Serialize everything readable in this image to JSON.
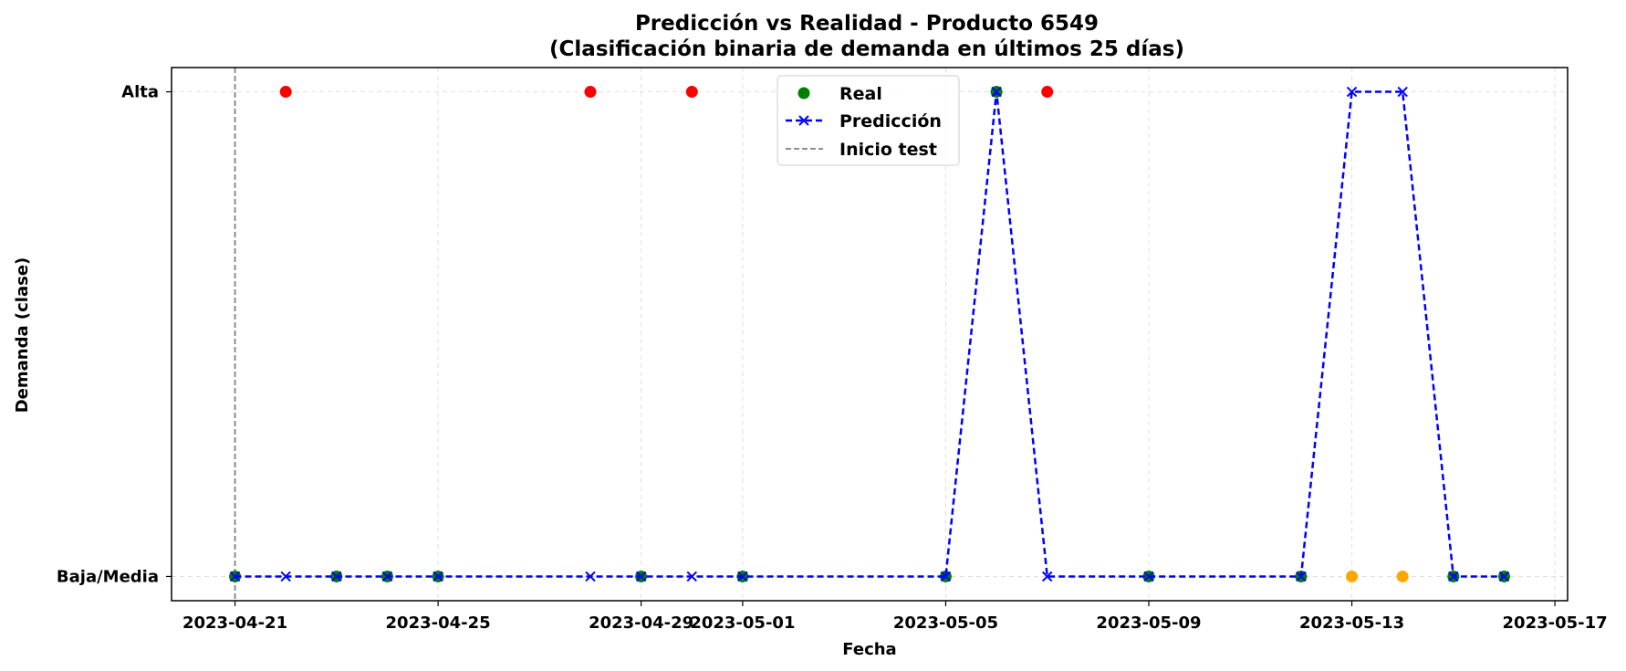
{
  "chart_data": {
    "type": "scatter",
    "title": "Predicción vs Realidad - Producto 6549",
    "subtitle": "(Clasificación binaria de demanda en últimos 25 días)",
    "xlabel": "Fecha",
    "ylabel": "Demanda (clase)",
    "xlim": [
      "2023-04-19.75",
      "2023-05-17.25"
    ],
    "ylim": [
      -0.05,
      1.05
    ],
    "x_ticks": [
      "2023-04-21",
      "2023-04-25",
      "2023-04-29",
      "2023-05-01",
      "2023-05-05",
      "2023-05-09",
      "2023-05-13",
      "2023-05-17"
    ],
    "y_ticks": [
      {
        "value": 0,
        "label": "Baja/Media"
      },
      {
        "value": 1,
        "label": "Alta"
      }
    ],
    "grid": true,
    "legend_position": "top-center",
    "colors": {
      "real_correct": "#008000",
      "real_false_negative": "#ff0000",
      "real_false_positive": "#ffa500",
      "prediction": "#0000ff",
      "test_start": "#808080",
      "grid": "#e0e0e0"
    },
    "test_start_date": "2023-04-21",
    "series": [
      {
        "name": "Real",
        "x": [
          "2023-04-21",
          "2023-04-22",
          "2023-04-23",
          "2023-04-24",
          "2023-04-25",
          "2023-04-28",
          "2023-04-29",
          "2023-04-30",
          "2023-05-01",
          "2023-05-05",
          "2023-05-06",
          "2023-05-07",
          "2023-05-09",
          "2023-05-12",
          "2023-05-13",
          "2023-05-14",
          "2023-05-15",
          "2023-05-16"
        ],
        "y": [
          0,
          1,
          0,
          0,
          0,
          1,
          0,
          1,
          0,
          0,
          1,
          1,
          0,
          0,
          0,
          0,
          0,
          0
        ]
      },
      {
        "name": "Predicción",
        "x": [
          "2023-04-21",
          "2023-04-22",
          "2023-04-23",
          "2023-04-24",
          "2023-04-25",
          "2023-04-28",
          "2023-04-29",
          "2023-04-30",
          "2023-05-01",
          "2023-05-05",
          "2023-05-06",
          "2023-05-07",
          "2023-05-09",
          "2023-05-12",
          "2023-05-13",
          "2023-05-14",
          "2023-05-15",
          "2023-05-16"
        ],
        "y": [
          0,
          0,
          0,
          0,
          0,
          0,
          0,
          0,
          0,
          0,
          1,
          0,
          0,
          0,
          1,
          1,
          0,
          0
        ]
      }
    ],
    "legend": [
      {
        "label": "Real",
        "kind": "dot"
      },
      {
        "label": "Predicción",
        "kind": "dashed-x"
      },
      {
        "label": "Inicio test",
        "kind": "dashed-gray"
      }
    ]
  }
}
